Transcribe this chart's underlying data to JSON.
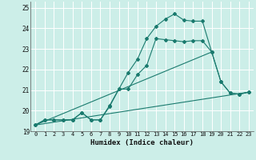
{
  "xlabel": "Humidex (Indice chaleur)",
  "background_color": "#cceee8",
  "grid_color": "#ffffff",
  "line_color": "#1a7a6e",
  "xlim": [
    -0.5,
    23.5
  ],
  "ylim": [
    19,
    25.3
  ],
  "xticks": [
    0,
    1,
    2,
    3,
    4,
    5,
    6,
    7,
    8,
    9,
    10,
    11,
    12,
    13,
    14,
    15,
    16,
    17,
    18,
    19,
    20,
    21,
    22,
    23
  ],
  "yticks": [
    19,
    20,
    21,
    22,
    23,
    24,
    25
  ],
  "line1_x": [
    0,
    1,
    2,
    3,
    4,
    5,
    6,
    7,
    8,
    9,
    10,
    11,
    12,
    13,
    14,
    15,
    16,
    17,
    18,
    19,
    20,
    21,
    22,
    23
  ],
  "line1_y": [
    19.3,
    19.55,
    19.55,
    19.55,
    19.55,
    19.9,
    19.55,
    19.55,
    20.25,
    21.05,
    21.85,
    22.5,
    23.5,
    24.1,
    24.45,
    24.7,
    24.4,
    24.35,
    24.35,
    22.85,
    21.4,
    20.85,
    20.8,
    20.9
  ],
  "line2_x": [
    0,
    1,
    2,
    3,
    4,
    5,
    6,
    7,
    8,
    9,
    10,
    11,
    12,
    13,
    14,
    15,
    16,
    17,
    18,
    19,
    20,
    21,
    22,
    23
  ],
  "line2_y": [
    19.3,
    19.55,
    19.55,
    19.55,
    19.55,
    19.9,
    19.55,
    19.55,
    20.2,
    21.05,
    21.05,
    21.75,
    22.2,
    23.5,
    23.45,
    23.4,
    23.35,
    23.4,
    23.4,
    22.85,
    21.4,
    20.85,
    20.8,
    20.9
  ],
  "line3_x": [
    0,
    23
  ],
  "line3_y": [
    19.3,
    20.9
  ],
  "line4_x": [
    0,
    19
  ],
  "line4_y": [
    19.3,
    22.85
  ]
}
